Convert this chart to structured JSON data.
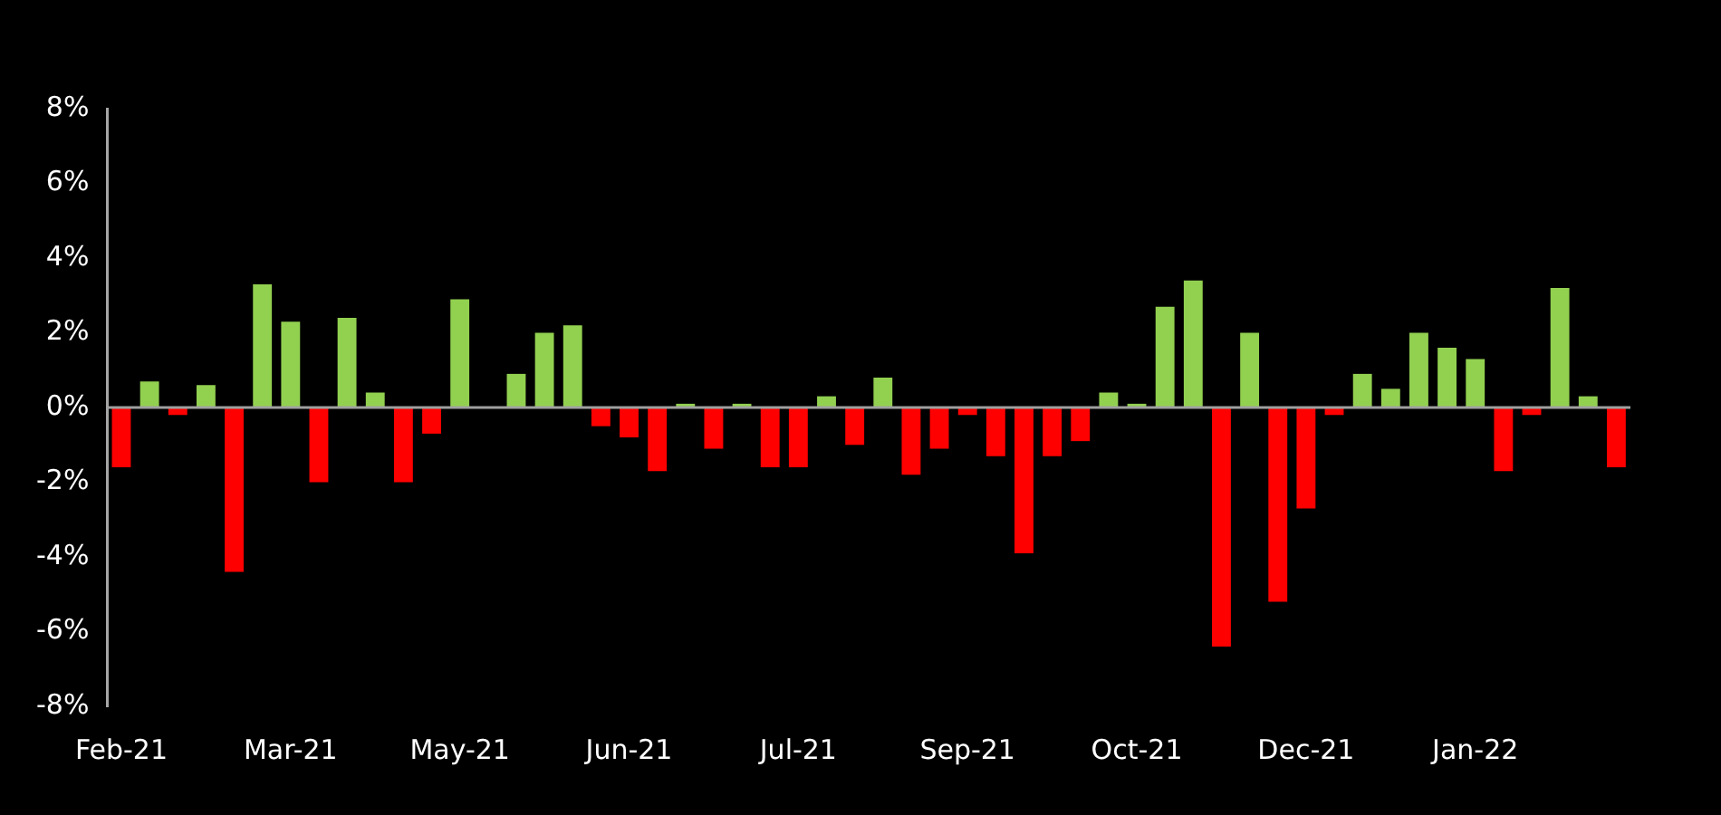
{
  "chart_data": {
    "type": "bar",
    "categories": [
      "Feb-21",
      null,
      null,
      null,
      null,
      null,
      "Mar-21",
      null,
      null,
      null,
      null,
      null,
      "May-21",
      null,
      null,
      null,
      null,
      null,
      "Jun-21",
      null,
      null,
      null,
      null,
      null,
      "Jul-21",
      null,
      null,
      null,
      null,
      null,
      "Sep-21",
      null,
      null,
      null,
      null,
      null,
      "Oct-21",
      null,
      null,
      null,
      null,
      null,
      "Dec-21",
      null,
      null,
      null,
      null,
      null,
      "Jan-22",
      null,
      null,
      null,
      null,
      null
    ],
    "values": [
      -1.6,
      0.7,
      -0.2,
      0.6,
      -4.4,
      3.3,
      2.3,
      -2.0,
      2.4,
      0.4,
      -2.0,
      -0.7,
      2.9,
      0,
      0.9,
      2.0,
      2.2,
      -0.5,
      -0.8,
      -1.7,
      0.1,
      -1.1,
      0.1,
      -1.6,
      -1.6,
      0.3,
      -1.0,
      0.8,
      -1.8,
      -1.1,
      -0.2,
      -1.3,
      -3.9,
      -1.3,
      -0.9,
      0.4,
      0.1,
      2.7,
      3.4,
      -6.4,
      2.0,
      -5.2,
      -2.7,
      -0.2,
      0.9,
      0.5,
      2.0,
      1.6,
      1.3,
      -1.7,
      -0.2,
      3.2,
      0.3,
      -1.6
    ],
    "colors": [
      "#ff0000",
      "#92d050",
      "#ff0000",
      "#92d050",
      "#ff0000",
      "#92d050",
      "#92d050",
      "#ff0000",
      "#92d050",
      "#92d050",
      "#ff0000",
      "#ff0000",
      "#92d050",
      "#92d050",
      "#92d050",
      "#92d050",
      "#92d050",
      "#ff0000",
      "#ff0000",
      "#ff0000",
      "#92d050",
      "#ff0000",
      "#92d050",
      "#ff0000",
      "#ff0000",
      "#92d050",
      "#ff0000",
      "#92d050",
      "#ff0000",
      "#ff0000",
      "#ff0000",
      "#ff0000",
      "#ff0000",
      "#ff0000",
      "#ff0000",
      "#92d050",
      "#92d050",
      "#92d050",
      "#92d050",
      "#ff0000",
      "#92d050",
      "#ff0000",
      "#ff0000",
      "#ff0000",
      "#92d050",
      "#92d050",
      "#92d050",
      "#92d050",
      "#92d050",
      "#ff0000",
      "#ff0000",
      "#92d050",
      "#92d050",
      "#ff0000"
    ],
    "ylim": [
      -8,
      8
    ],
    "yticks": [
      {
        "value": -8,
        "label": "-8%"
      },
      {
        "value": -6,
        "label": "-6%"
      },
      {
        "value": -4,
        "label": "-4%"
      },
      {
        "value": -2,
        "label": "-2%"
      },
      {
        "value": 0,
        "label": "0%"
      },
      {
        "value": 2,
        "label": "2%"
      },
      {
        "value": 4,
        "label": "4%"
      },
      {
        "value": 6,
        "label": "6%"
      },
      {
        "value": 8,
        "label": "8%"
      }
    ],
    "ref_lines": [
      {
        "axis": "y",
        "value": 0,
        "color": "#a0a0a0"
      }
    ],
    "grid": false,
    "legend": false
  }
}
